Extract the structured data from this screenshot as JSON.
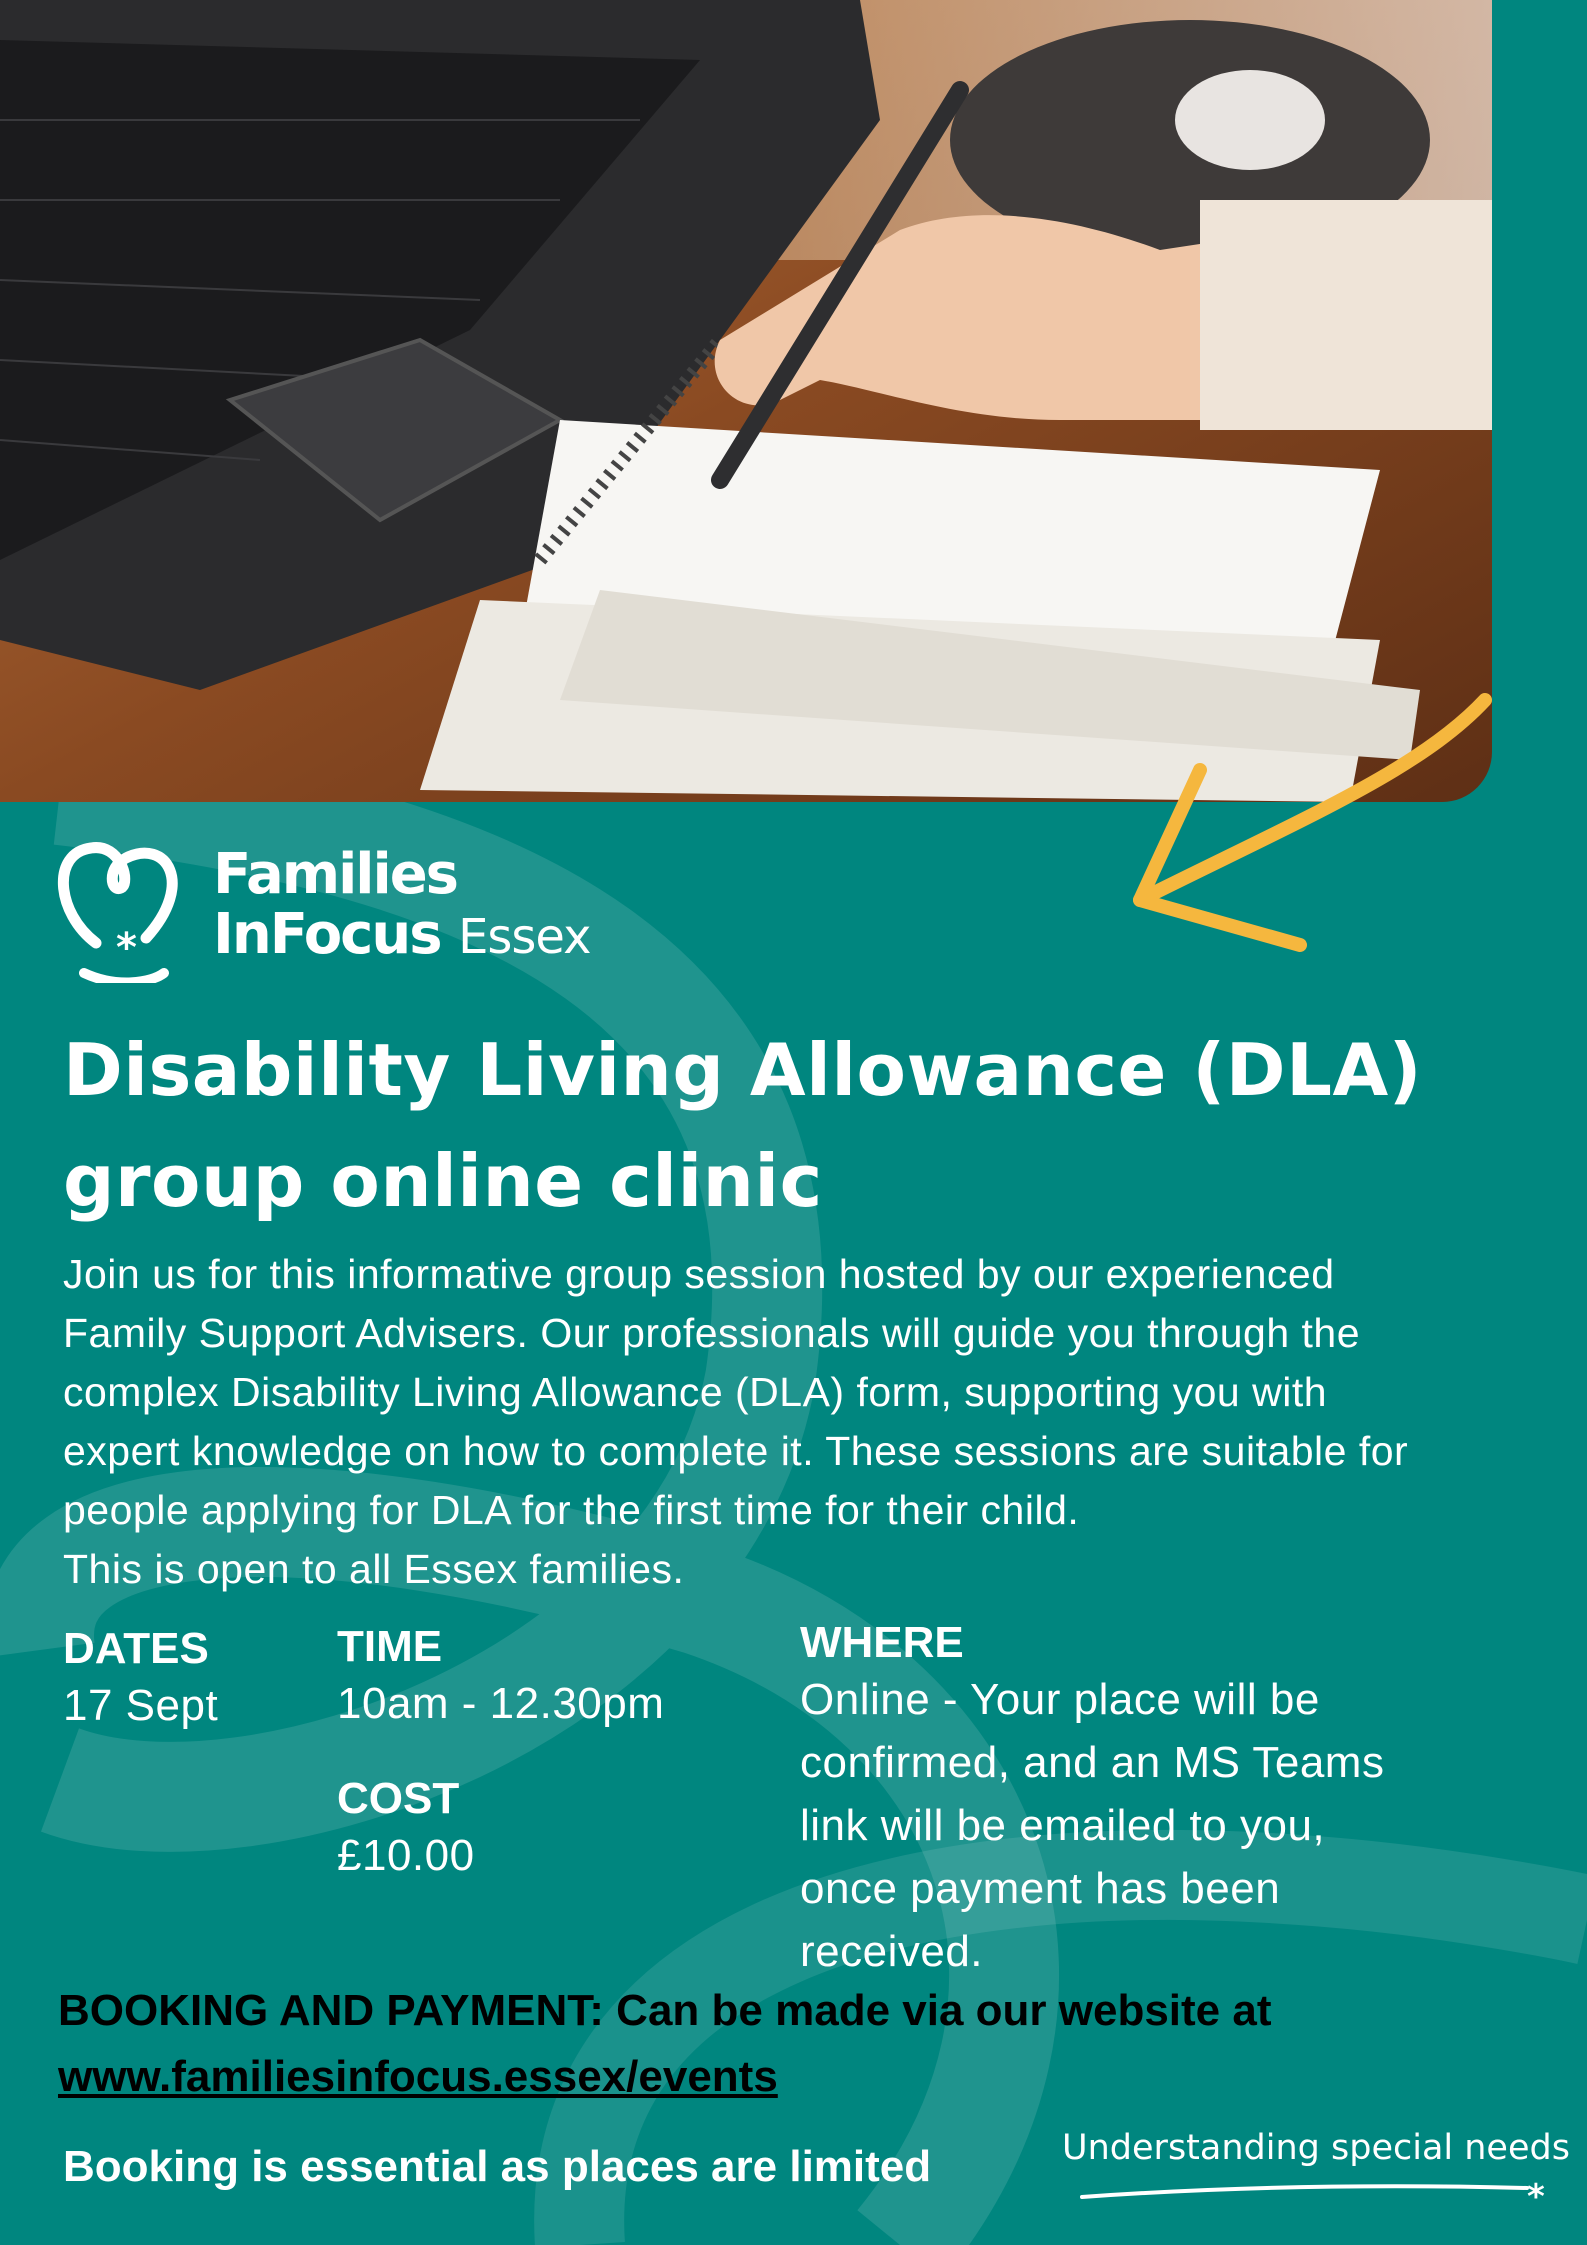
{
  "logo": {
    "line1": "Families",
    "line2": "InFocus",
    "region": "Essex"
  },
  "title": {
    "line1": "Disability Living Allowance (DLA)",
    "line2": "group online clinic"
  },
  "intro": [
    "Join us for this informative group session  hosted by our experienced",
    "Family Support Advisers. Our professionals will guide you through the",
    "complex Disability Living Allowance (DLA) form, supporting you with",
    "expert knowledge on how to complete it. These sessions are suitable for",
    "people applying for DLA for the first time for their child.",
    "This is open to all Essex families."
  ],
  "details": {
    "dates": {
      "label": "DATES",
      "value": "17 Sept"
    },
    "time": {
      "label": "TIME",
      "value": "10am - 12.30pm"
    },
    "cost": {
      "label": "COST",
      "value": "£10.00"
    },
    "where": {
      "label": "WHERE",
      "lines": [
        "Online - Your place will be",
        "confirmed, and an MS Teams",
        "link will be emailed to you,",
        "once payment has been",
        "received."
      ]
    }
  },
  "booking": {
    "text": "BOOKING AND PAYMENT: Can be made via our website at",
    "link": "www.familiesinfocus.essex/events"
  },
  "essential": "Booking is essential as places are limited",
  "tagline": "Understanding special needs",
  "colors": {
    "background": "#00867f",
    "arrow": "#f5b73e",
    "text": "#ffffff"
  },
  "icons": [
    "heart-logo-icon",
    "arrow-icon",
    "asterisk-icon"
  ]
}
